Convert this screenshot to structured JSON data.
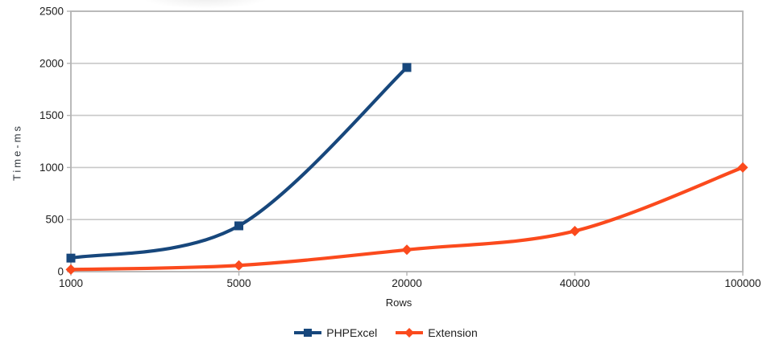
{
  "chart_data": {
    "type": "line",
    "line_style": "smooth",
    "xlabel": "Rows",
    "ylabel": "Time-ms",
    "categories": [
      "1000",
      "5000",
      "20000",
      "40000",
      "100000"
    ],
    "series": [
      {
        "name": "PHPExcel",
        "color": "#17477c",
        "marker": "square",
        "values": [
          130,
          440,
          1960,
          null,
          null
        ]
      },
      {
        "name": "Extension",
        "color": "#fb4a1d",
        "marker": "diamond",
        "values": [
          20,
          60,
          210,
          390,
          1000
        ]
      }
    ],
    "ylim": [
      0,
      2500
    ],
    "yticks": [
      0,
      500,
      1000,
      1500,
      2000,
      2500
    ],
    "grid": "horizontal",
    "legend_position": "bottom-center"
  },
  "colors": {
    "background": "#ffffff",
    "gridline": "#c8c8c8",
    "plot_border": "#b3b3b3",
    "tick": "#b3b3b3",
    "text": "#1c1c1c"
  }
}
